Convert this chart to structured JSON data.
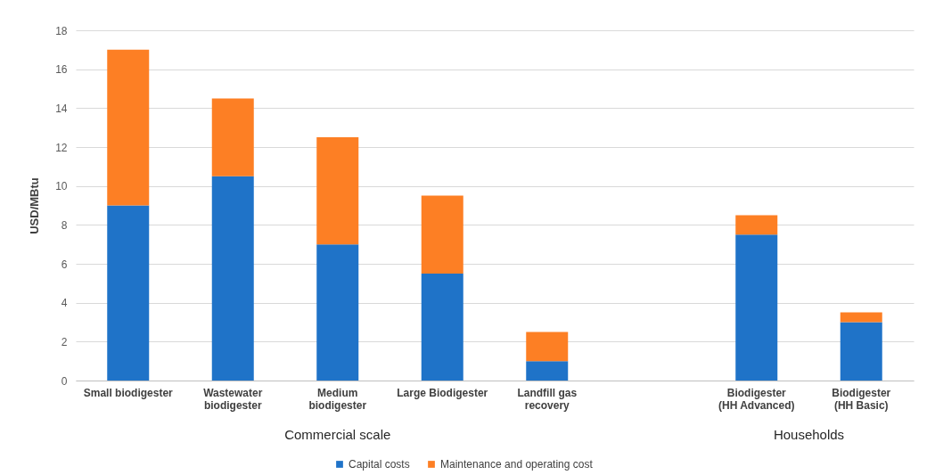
{
  "chart_data": {
    "type": "bar",
    "stacked": true,
    "ylabel": "USD/MBtu",
    "categories": [
      "Small biodigester",
      "Wastewater biodigester",
      "Medium biodigester",
      "Large Biodigester",
      "Landfill gas recovery",
      null,
      "Biodigester (HH Advanced)",
      "Biodigester (HH Basic)"
    ],
    "series": [
      {
        "name": "Capital costs",
        "color": "#1f73c8",
        "values": [
          9,
          10.5,
          7,
          5.5,
          1,
          null,
          7.5,
          3
        ]
      },
      {
        "name": "Maintenance and operating cost",
        "color": "#fd7f24",
        "values": [
          8,
          4,
          5.5,
          4,
          1.5,
          null,
          1,
          0.5
        ]
      }
    ],
    "ylim": [
      0,
      18
    ],
    "yticks": [
      0,
      2,
      4,
      6,
      8,
      10,
      12,
      14,
      16,
      18
    ],
    "grid": "y",
    "legend": "bottom",
    "annotations": [
      "Commercial scale",
      "Households"
    ]
  }
}
